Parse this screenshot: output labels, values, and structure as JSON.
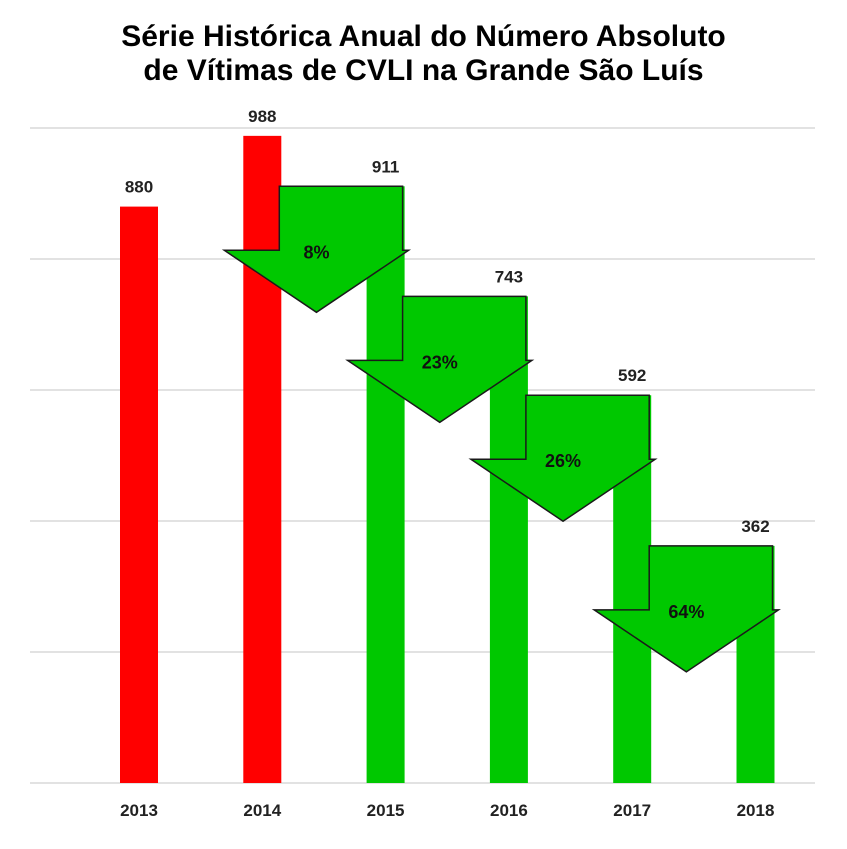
{
  "chart_data": {
    "type": "bar",
    "title_lines": [
      "Série Histórica Anual do Número Absoluto",
      "de Vítimas de CVLI na Grande São Luís"
    ],
    "categories": [
      "2013",
      "2014",
      "2015",
      "2016",
      "2017",
      "2018"
    ],
    "values": [
      880,
      988,
      911,
      743,
      592,
      362
    ],
    "data_labels": [
      "880",
      "988",
      "911",
      "743",
      "592",
      "362"
    ],
    "bar_colors": [
      "#ff0000",
      "#ff0000",
      "#00c800",
      "#00c800",
      "#00c800",
      "#00c800"
    ],
    "ylim": [
      0,
      1000
    ],
    "grid": true,
    "gridline_values": [
      200,
      400,
      600,
      800,
      1000
    ],
    "annotations": [
      {
        "from": "2014",
        "to": "2015",
        "text": "8%"
      },
      {
        "from": "2015",
        "to": "2016",
        "text": "23%"
      },
      {
        "from": "2016",
        "to": "2017",
        "text": "26%"
      },
      {
        "from": "2017",
        "to": "2018",
        "text": "64%"
      }
    ],
    "annotation_color": "#00c800",
    "gridline_color": "#d9d9d9"
  }
}
